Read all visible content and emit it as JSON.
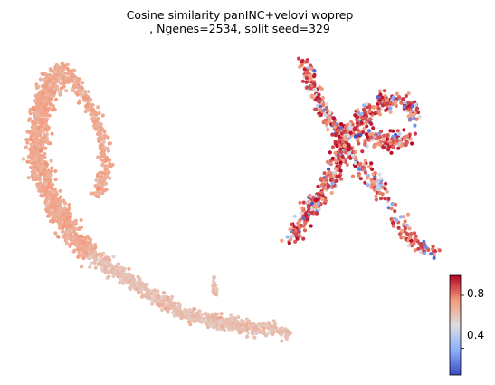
{
  "chart_data": {
    "type": "scatter",
    "title_line1": "Cosine similarity panINC+velovi woprep",
    "title_line2": ", Ngenes=2534, split seed=329",
    "xlabel": "",
    "ylabel": "",
    "axes_visible": false,
    "grid": false,
    "colormap": "coolwarm",
    "colorbar": {
      "position": "right",
      "min": 0.2,
      "max": 0.95,
      "ticks": [
        {
          "value": 0.8,
          "label": "0.8"
        },
        {
          "value": 0.4,
          "label": "0.4"
        }
      ]
    },
    "point_count_approx": 2534,
    "clusters": [
      {
        "name": "left-arc",
        "typical_value": 0.72,
        "value_range": [
          0.58,
          0.84
        ]
      },
      {
        "name": "bottom-tail",
        "typical_value": 0.66,
        "value_range": [
          0.55,
          0.78
        ]
      },
      {
        "name": "right-x-shape",
        "typical_value": 0.75,
        "value_range": [
          0.2,
          0.95
        ]
      }
    ]
  }
}
